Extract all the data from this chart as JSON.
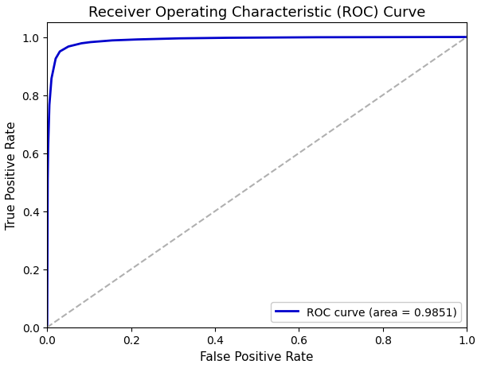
{
  "title": "Receiver Operating Characteristic (ROC) Curve",
  "xlabel": "False Positive Rate",
  "ylabel": "True Positive Rate",
  "auc": 0.9851,
  "legend_label": "ROC curve (area = 0.9851)",
  "roc_color": "#0000cc",
  "diagonal_color": "#b0b0b0",
  "roc_linewidth": 2.0,
  "diagonal_linewidth": 1.5,
  "xlim": [
    0.0,
    1.0
  ],
  "ylim": [
    0.0,
    1.05
  ],
  "figsize": [
    6.04,
    4.64
  ],
  "dpi": 100,
  "curve_alpha": 0.01513,
  "fpr_points": [
    0.0,
    0.001,
    0.002,
    0.005,
    0.01,
    0.02,
    0.03,
    0.05,
    0.08,
    0.1,
    0.15,
    0.2,
    0.3,
    0.4,
    0.5,
    0.6,
    0.7,
    0.8,
    0.9,
    1.0
  ],
  "tpr_points": [
    0.0,
    0.47,
    0.6,
    0.76,
    0.855,
    0.925,
    0.95,
    0.967,
    0.978,
    0.982,
    0.988,
    0.991,
    0.995,
    0.997,
    0.998,
    0.999,
    0.9993,
    0.9996,
    0.9998,
    1.0
  ]
}
